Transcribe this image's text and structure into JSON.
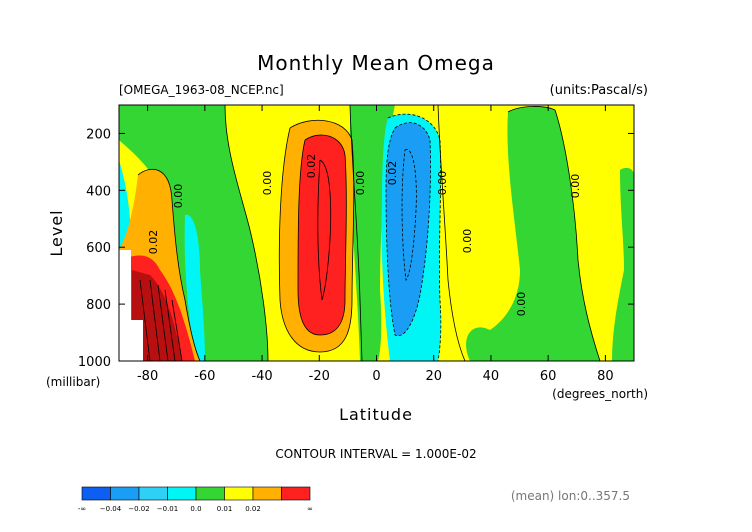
{
  "chart_data": {
    "type": "heatmap",
    "title": "Monthly Mean Omega",
    "file_label": "[OMEGA_1963-08_NCEP.nc]",
    "units_label": "(units:Pascal/s)",
    "xlabel": "Latitude",
    "x_units": "(degrees_north)",
    "ylabel": "Level",
    "y_units": "(millibar)",
    "xlim": [
      -90,
      90
    ],
    "ylim": [
      1000,
      100
    ],
    "x_ticks": [
      -80,
      -60,
      -40,
      -20,
      0,
      20,
      40,
      60,
      80
    ],
    "y_ticks": [
      200,
      400,
      600,
      800,
      1000
    ],
    "contour_interval_text": "CONTOUR INTERVAL = 1.000E-02",
    "footer_note": "(mean) lon:0..357.5",
    "colorbar": {
      "colors": [
        "#0c5ff0",
        "#1a9ef5",
        "#2fd0f5",
        "#00f5f5",
        "#33d633",
        "#ffff00",
        "#ffb000",
        "#ff2020"
      ],
      "labels": [
        "-∞",
        "−0.04",
        "−0.02",
        "−0.01",
        "0.0",
        "0.01",
        "0.02",
        "∞"
      ]
    },
    "regions": [
      {
        "name": "south-pole-descent",
        "value": "0.04",
        "lat": [
          -84,
          -66
        ],
        "level": [
          700,
          1000
        ]
      },
      {
        "name": "subtropical-south-descent",
        "value": "0.02",
        "lat": [
          -32,
          -10
        ],
        "level": [
          120,
          1000
        ]
      },
      {
        "name": "itcz-ascent",
        "value": "-0.02",
        "lat": [
          0,
          20
        ],
        "level": [
          120,
          1000
        ]
      }
    ],
    "contour_labels": [
      "0.00",
      "0.02",
      "0.00",
      "0.02",
      "0.00",
      "0.02",
      "0.00",
      "0.00",
      "0.00",
      "0.00"
    ]
  }
}
